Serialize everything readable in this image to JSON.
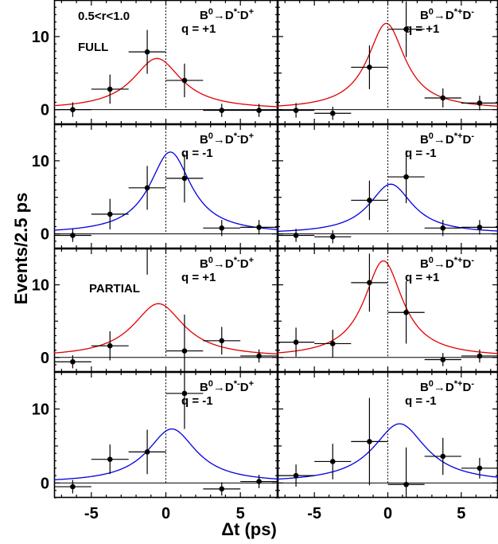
{
  "chart_data": {
    "type": "scatter",
    "xlabel": "Δt (ps)",
    "ylabel": "Events/2.5 ps",
    "xlim": [
      -7.5,
      7.5
    ],
    "ylim": [
      -2,
      15
    ],
    "x_ticks": [
      -5,
      0,
      5
    ],
    "y_ticks": [
      0,
      10
    ],
    "x_tick_labels": [
      "-5",
      "0",
      "5"
    ],
    "y_tick_labels": [
      "0",
      "10"
    ],
    "colors": {
      "q_plus": "#e00000",
      "q_minus": "#0000e0",
      "points": "#000000"
    },
    "panels": [
      {
        "row": 0,
        "col": 0,
        "channel": {
          "b": "B",
          "b_sup": "0",
          "arrow": "→",
          "d1": "D",
          "d1_sup": "*-",
          "d2": "D",
          "d2_sup": "+"
        },
        "charge": "q = +1",
        "labels": [
          "0.5<r<1.0",
          "FULL"
        ],
        "curve": {
          "peak": 7.0,
          "mu": -0.6,
          "gamma": 2.0,
          "color": "#e00000"
        },
        "points": [
          {
            "x": -6.25,
            "y": 0.0,
            "xerr": 1.25,
            "yerr": 1.0
          },
          {
            "x": -3.75,
            "y": 2.8,
            "xerr": 1.25,
            "yerr": 2.0
          },
          {
            "x": -1.25,
            "y": 7.9,
            "xerr": 1.25,
            "yerr": 3.0
          },
          {
            "x": 1.25,
            "y": 4.0,
            "xerr": 1.25,
            "yerr": 2.3
          },
          {
            "x": 3.75,
            "y": -0.1,
            "xerr": 1.25,
            "yerr": 0.9
          },
          {
            "x": 6.25,
            "y": -0.1,
            "xerr": 1.25,
            "yerr": 0.9
          }
        ]
      },
      {
        "row": 0,
        "col": 1,
        "channel": {
          "b": "B",
          "b_sup": "0",
          "arrow": "→",
          "d1": "D",
          "d1_sup": "*+",
          "d2": "D",
          "d2_sup": "-"
        },
        "charge": "q = +1",
        "labels": [],
        "curve": {
          "peak": 11.8,
          "mu": -0.1,
          "gamma": 1.55,
          "color": "#e00000"
        },
        "points": [
          {
            "x": -6.25,
            "y": -0.1,
            "xerr": 1.25,
            "yerr": 1.0
          },
          {
            "x": -3.75,
            "y": -0.5,
            "xerr": 1.25,
            "yerr": 0.9
          },
          {
            "x": -1.25,
            "y": 5.8,
            "xerr": 1.25,
            "yerr": 3.0
          },
          {
            "x": 1.25,
            "y": 11.0,
            "xerr": 1.25,
            "yerr": 3.8
          },
          {
            "x": 3.75,
            "y": 1.6,
            "xerr": 1.25,
            "yerr": 1.3
          },
          {
            "x": 6.25,
            "y": 0.9,
            "xerr": 1.25,
            "yerr": 1.0
          }
        ]
      },
      {
        "row": 1,
        "col": 0,
        "channel": {
          "b": "B",
          "b_sup": "0",
          "arrow": "→",
          "d1": "D",
          "d1_sup": "*-",
          "d2": "D",
          "d2_sup": "+"
        },
        "charge": "q = -1",
        "labels": [],
        "curve": {
          "peak": 11.2,
          "mu": 0.3,
          "gamma": 1.7,
          "color": "#0000e0"
        },
        "points": [
          {
            "x": -6.25,
            "y": -0.2,
            "xerr": 1.25,
            "yerr": 0.9
          },
          {
            "x": -3.75,
            "y": 2.7,
            "xerr": 1.25,
            "yerr": 2.1
          },
          {
            "x": -1.25,
            "y": 6.3,
            "xerr": 1.25,
            "yerr": 3.0
          },
          {
            "x": 1.25,
            "y": 7.6,
            "xerr": 1.25,
            "yerr": 3.3
          },
          {
            "x": 3.75,
            "y": 0.8,
            "xerr": 1.25,
            "yerr": 1.1
          },
          {
            "x": 6.25,
            "y": 0.9,
            "xerr": 1.25,
            "yerr": 1.0
          }
        ]
      },
      {
        "row": 1,
        "col": 1,
        "channel": {
          "b": "B",
          "b_sup": "0",
          "arrow": "→",
          "d1": "D",
          "d1_sup": "*+",
          "d2": "D",
          "d2_sup": "-"
        },
        "charge": "q = -1",
        "labels": [],
        "curve": {
          "peak": 6.8,
          "mu": 0.2,
          "gamma": 1.8,
          "color": "#0000e0"
        },
        "points": [
          {
            "x": -6.25,
            "y": -0.2,
            "xerr": 1.25,
            "yerr": 0.9
          },
          {
            "x": -3.75,
            "y": -0.4,
            "xerr": 1.25,
            "yerr": 0.9
          },
          {
            "x": -1.25,
            "y": 4.6,
            "xerr": 1.25,
            "yerr": 2.7
          },
          {
            "x": 1.25,
            "y": 7.8,
            "xerr": 1.25,
            "yerr": 3.6
          },
          {
            "x": 3.75,
            "y": 0.8,
            "xerr": 1.25,
            "yerr": 1.1
          },
          {
            "x": 6.25,
            "y": 0.9,
            "xerr": 1.25,
            "yerr": 1.0
          }
        ]
      },
      {
        "row": 2,
        "col": 0,
        "channel": {
          "b": "B",
          "b_sup": "0",
          "arrow": "→",
          "d1": "D",
          "d1_sup": "*-",
          "d2": "D",
          "d2_sup": "+"
        },
        "charge": "q = +1",
        "labels": [
          "PARTIAL"
        ],
        "curve": {
          "peak": 7.4,
          "mu": -0.5,
          "gamma": 2.1,
          "color": "#e00000"
        },
        "points": [
          {
            "x": -6.25,
            "y": -0.6,
            "xerr": 1.25,
            "yerr": 0.9
          },
          {
            "x": -3.75,
            "y": 1.6,
            "xerr": 1.25,
            "yerr": 2.0
          },
          {
            "x": -1.25,
            "y": 15.8,
            "xerr": 1.25,
            "yerr": 4.4
          },
          {
            "x": 1.25,
            "y": 0.9,
            "xerr": 1.25,
            "yerr": 5.0
          },
          {
            "x": 3.75,
            "y": 2.3,
            "xerr": 1.25,
            "yerr": 1.9
          },
          {
            "x": 6.25,
            "y": 0.2,
            "xerr": 1.25,
            "yerr": 0.9
          }
        ]
      },
      {
        "row": 2,
        "col": 1,
        "channel": {
          "b": "B",
          "b_sup": "0",
          "arrow": "→",
          "d1": "D",
          "d1_sup": "*+",
          "d2": "D",
          "d2_sup": "-"
        },
        "charge": "q = +1",
        "labels": [],
        "curve": {
          "peak": 13.3,
          "mu": -0.3,
          "gamma": 1.6,
          "color": "#e00000"
        },
        "points": [
          {
            "x": -6.25,
            "y": 2.1,
            "xerr": 1.25,
            "yerr": 2.0
          },
          {
            "x": -3.75,
            "y": 1.9,
            "xerr": 1.25,
            "yerr": 1.9
          },
          {
            "x": -1.25,
            "y": 10.3,
            "xerr": 1.25,
            "yerr": 4.0
          },
          {
            "x": 1.25,
            "y": 6.2,
            "xerr": 1.25,
            "yerr": 4.3
          },
          {
            "x": 3.75,
            "y": -0.3,
            "xerr": 1.25,
            "yerr": 0.9
          },
          {
            "x": 6.25,
            "y": 0.2,
            "xerr": 1.25,
            "yerr": 0.9
          }
        ]
      },
      {
        "row": 3,
        "col": 0,
        "channel": {
          "b": "B",
          "b_sup": "0",
          "arrow": "→",
          "d1": "D",
          "d1_sup": "*-",
          "d2": "D",
          "d2_sup": "+"
        },
        "charge": "q = -1",
        "labels": [],
        "curve": {
          "peak": 7.3,
          "mu": 0.4,
          "gamma": 2.0,
          "color": "#0000e0"
        },
        "points": [
          {
            "x": -6.25,
            "y": -0.5,
            "xerr": 1.25,
            "yerr": 0.9
          },
          {
            "x": -3.75,
            "y": 3.2,
            "xerr": 1.25,
            "yerr": 2.0
          },
          {
            "x": -1.25,
            "y": 4.2,
            "xerr": 1.25,
            "yerr": 3.0
          },
          {
            "x": 1.25,
            "y": 12.1,
            "xerr": 1.25,
            "yerr": 4.8
          },
          {
            "x": 3.75,
            "y": -0.8,
            "xerr": 1.25,
            "yerr": 0.9
          },
          {
            "x": 6.25,
            "y": 0.2,
            "xerr": 1.25,
            "yerr": 0.9
          }
        ]
      },
      {
        "row": 3,
        "col": 1,
        "channel": {
          "b": "B",
          "b_sup": "0",
          "arrow": "→",
          "d1": "D",
          "d1_sup": "*+",
          "d2": "D",
          "d2_sup": "-"
        },
        "charge": "q = -1",
        "labels": [],
        "curve": {
          "peak": 8.0,
          "mu": 0.8,
          "gamma": 2.2,
          "color": "#0000e0"
        },
        "points": [
          {
            "x": -6.25,
            "y": 1.0,
            "xerr": 1.25,
            "yerr": 1.5
          },
          {
            "x": -3.75,
            "y": 2.9,
            "xerr": 1.25,
            "yerr": 2.4
          },
          {
            "x": -1.25,
            "y": 5.6,
            "xerr": 1.25,
            "yerr": 5.9
          },
          {
            "x": 1.25,
            "y": -0.2,
            "xerr": 1.25,
            "yerr": 5.0
          },
          {
            "x": 3.75,
            "y": 3.6,
            "xerr": 1.25,
            "yerr": 2.5
          },
          {
            "x": 6.25,
            "y": 2.0,
            "xerr": 1.25,
            "yerr": 1.4
          }
        ]
      }
    ]
  }
}
